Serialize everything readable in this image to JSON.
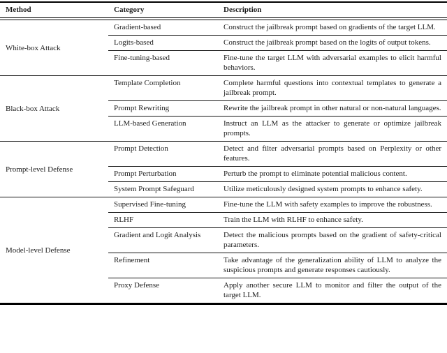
{
  "table": {
    "columns": [
      "Method",
      "Category",
      "Description"
    ],
    "sections": [
      {
        "method": "White-box Attack",
        "rows": [
          {
            "category": "Gradient-based",
            "description": "Construct the jailbreak prompt based on gradients of the target LLM."
          },
          {
            "category": "Logits-based",
            "description": "Construct the jailbreak prompt based on the logits of output tokens."
          },
          {
            "category": "Fine-tuning-based",
            "description": "Fine-tune the target LLM with adversarial examples to elicit harmful behaviors."
          }
        ]
      },
      {
        "method": "Black-box Attack",
        "rows": [
          {
            "category": "Template Completion",
            "description": "Complete harmful questions into contextual templates to generate a jailbreak prompt."
          },
          {
            "category": "Prompt Rewriting",
            "description": "Rewrite the jailbreak prompt in other natural or non-natural languages."
          },
          {
            "category": "LLM-based Generation",
            "description": "Instruct an LLM as the attacker to generate or optimize jailbreak prompts."
          }
        ]
      },
      {
        "method": "Prompt-level Defense",
        "rows": [
          {
            "category": "Prompt Detection",
            "description": "Detect and filter adversarial prompts based on Perplexity or other features."
          },
          {
            "category": "Prompt Perturbation",
            "description": "Perturb the prompt to eliminate potential malicious content."
          },
          {
            "category": "System Prompt Safeguard",
            "description": "Utilize meticulously designed system prompts to enhance safety."
          }
        ]
      },
      {
        "method": "Model-level Defense",
        "rows": [
          {
            "category": "Supervised Fine-tuning",
            "description": "Fine-tune the LLM with safety examples to improve the robustness."
          },
          {
            "category": "RLHF",
            "description": "Train the LLM with RLHF to enhance safety."
          },
          {
            "category": "Gradient and Logit Analysis",
            "description": "Detect the malicious prompts based on the gradient of safety-critical parameters."
          },
          {
            "category": "Refinement",
            "description": "Take advantage of the generalization ability of LLM to analyze the suspicious prompts and generate responses cautiously."
          },
          {
            "category": "Proxy Defense",
            "description": "Apply another secure LLM to monitor and filter the output of the target LLM."
          }
        ]
      }
    ]
  }
}
